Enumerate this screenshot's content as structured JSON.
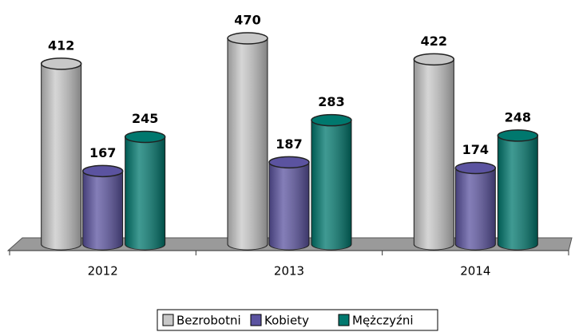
{
  "chart_data": {
    "type": "bar3d",
    "categories": [
      "2012",
      "2013",
      "2014"
    ],
    "series": [
      {
        "name": "Bezrobotni",
        "color": "#c8c8c8",
        "values": [
          412,
          470,
          422
        ]
      },
      {
        "name": "Kobiety",
        "color": "#5b53a0",
        "values": [
          167,
          187,
          174
        ]
      },
      {
        "name": "Mężczyźni",
        "color": "#00786e",
        "values": [
          245,
          283,
          248
        ]
      }
    ],
    "legend": "bottom"
  }
}
